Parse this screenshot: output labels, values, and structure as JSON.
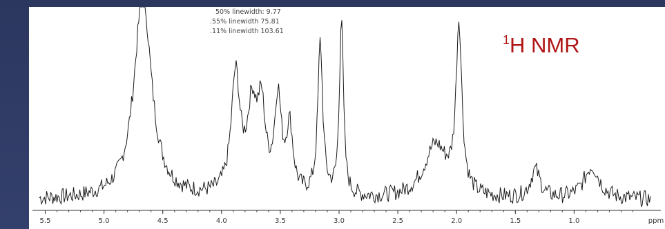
{
  "title": {
    "superscript": "1",
    "text": "H NMR",
    "color": "#b01414"
  },
  "linewidth_annotations": [
    "50% linewidth:  9.77",
    ".55% linewidth  75.81",
    ".11% linewidth 103.61"
  ],
  "chart_data": {
    "type": "line",
    "title": "",
    "xlabel": "ppm",
    "ylabel": "",
    "x_reversed": true,
    "xlim": [
      5.55,
      0.35
    ],
    "xticks": [
      5.5,
      5.0,
      4.5,
      4.0,
      3.5,
      3.0,
      2.5,
      2.0,
      1.5,
      1.0
    ],
    "xtick_labels": [
      "5.5",
      "5.0",
      "4.5",
      "4.0",
      "3.5",
      "3.0",
      "2.5",
      "2.0",
      "1.5",
      "1.0"
    ],
    "ylim": [
      0,
      100
    ],
    "grid": false,
    "peaks": [
      {
        "ppm": 4.67,
        "height": 100,
        "width": 0.09,
        "clipped": true
      },
      {
        "ppm": 3.88,
        "height": 58,
        "width": 0.045
      },
      {
        "ppm": 3.74,
        "height": 40,
        "width": 0.05
      },
      {
        "ppm": 3.66,
        "height": 38,
        "width": 0.04
      },
      {
        "ppm": 3.52,
        "height": 46,
        "width": 0.035
      },
      {
        "ppm": 3.42,
        "height": 32,
        "width": 0.035
      },
      {
        "ppm": 3.16,
        "height": 75,
        "width": 0.025
      },
      {
        "ppm": 2.98,
        "height": 89,
        "width": 0.02
      },
      {
        "ppm": 2.18,
        "height": 26,
        "width": 0.12
      },
      {
        "ppm": 1.98,
        "height": 82,
        "width": 0.03
      },
      {
        "ppm": 1.33,
        "height": 14,
        "width": 0.05
      },
      {
        "ppm": 0.85,
        "height": 16,
        "width": 0.08
      }
    ],
    "baseline": 5,
    "noise_amplitude": 4
  },
  "colors": {
    "trace": "#1a1a1a",
    "axis": "#333333",
    "background": "#ffffff",
    "slide": "#2f3a63"
  }
}
